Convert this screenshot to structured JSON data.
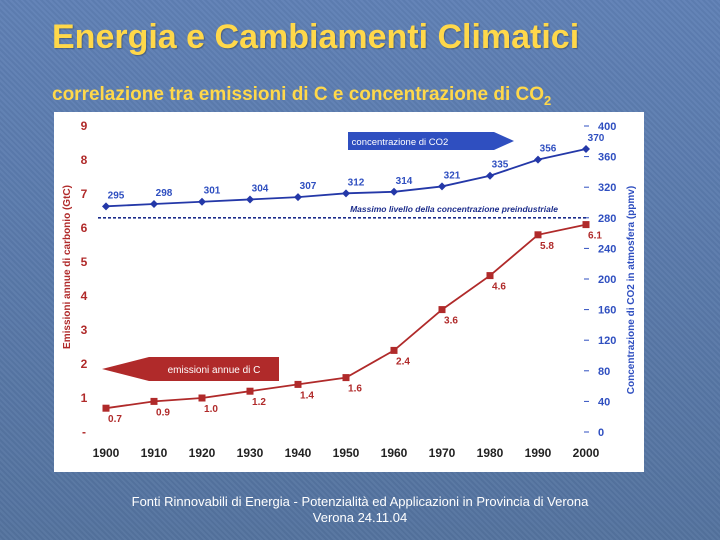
{
  "slide": {
    "title": "Energia e Cambiamenti Climatici",
    "subtitle_main": "correlazione tra emissioni di C e concentrazione di CO",
    "subtitle_sub": "2",
    "source_line1": "Fonti Rinnovabili di Energia - Potenzialità ed Applicazioni in Provincia di Verona",
    "source_line2": "Verona 24.11.04"
  },
  "colors": {
    "title": "#ffd84a",
    "background": "#5a7bb0",
    "emissions": "#b02a2a",
    "concentration": "#2438a8",
    "callout_blue": "#2f4fc0",
    "callout_red": "#b02a2a"
  },
  "chart_data": {
    "type": "line",
    "x": [
      1900,
      1910,
      1920,
      1930,
      1940,
      1950,
      1960,
      1970,
      1980,
      1990,
      2000
    ],
    "xlim": [
      1900,
      2000
    ],
    "ylabel_left": "Emissioni annue di carbonio (GtC)",
    "ylabel_right": "Concentrazione di CO2 in atmosfera (ppmv)",
    "ylim_left": [
      0,
      9
    ],
    "ylim_right": [
      0,
      400
    ],
    "left_ticks": [
      "-",
      "1",
      "2",
      "3",
      "4",
      "5",
      "6",
      "7",
      "8",
      "9"
    ],
    "right_ticks": [
      "0",
      "40",
      "80",
      "120",
      "160",
      "200",
      "240",
      "280",
      "320",
      "360",
      "400"
    ],
    "series": [
      {
        "name": "emissioni annue di C",
        "axis": "left",
        "values": [
          0.7,
          0.9,
          1.0,
          1.2,
          1.4,
          1.6,
          2.4,
          3.6,
          4.6,
          5.8,
          6.1
        ],
        "labels": [
          "0.7",
          "0.9",
          "1.0",
          "1.2",
          "1.4",
          "1.6",
          "2.4",
          "3.6",
          "4.6",
          "5.8",
          "6.1"
        ]
      },
      {
        "name": "concentrazione di CO2",
        "axis": "right",
        "values": [
          295,
          298,
          301,
          304,
          307,
          312,
          314,
          321,
          335,
          356,
          370
        ],
        "labels": [
          "295",
          "298",
          "301",
          "304",
          "307",
          "312",
          "314",
          "321",
          "335",
          "356",
          "370"
        ]
      }
    ],
    "reference_line": {
      "label": "Massimo livello della concentrazione preindustriale",
      "axis": "right",
      "value": 280
    }
  }
}
